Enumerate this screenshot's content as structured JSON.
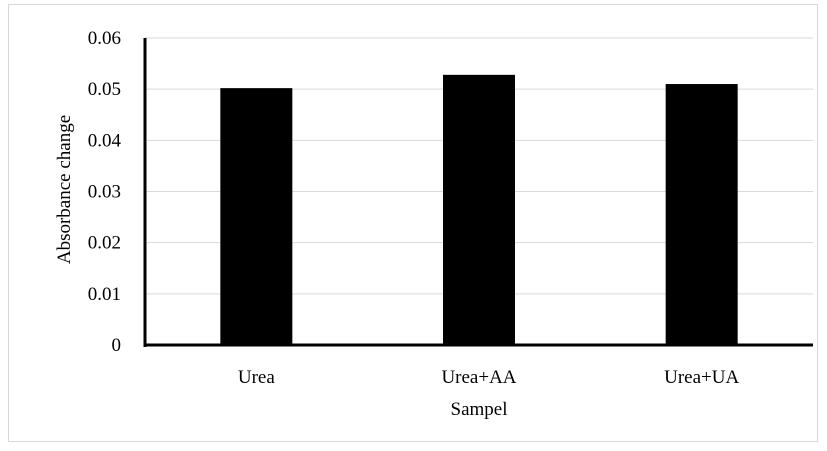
{
  "chart_data": {
    "type": "bar",
    "title": "",
    "xlabel": "Sampel",
    "ylabel": "Absorbance change",
    "categories": [
      "Urea",
      "Urea+AA",
      "Urea+UA"
    ],
    "values": [
      0.0502,
      0.0528,
      0.051
    ],
    "ylim": [
      0,
      0.06
    ],
    "yticks": [
      "0",
      "0.01",
      "0.02",
      "0.03",
      "0.04",
      "0.05",
      "0.06"
    ],
    "grid": true,
    "legend": "none",
    "bar_color": "#000000",
    "grid_color": "#d9d9d9",
    "axis_color": "#000000"
  }
}
